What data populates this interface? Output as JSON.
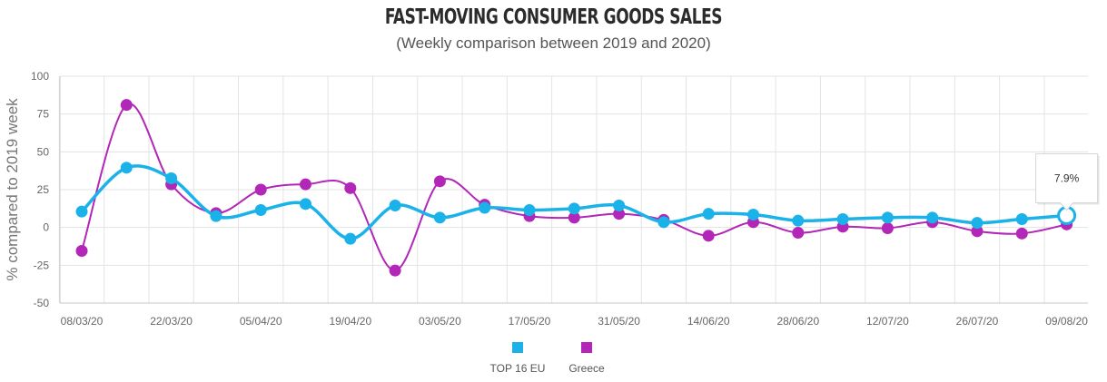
{
  "chart_data": {
    "type": "line",
    "title": "FAST-MOVING CONSUMER GOODS SALES",
    "subtitle": "(Weekly comparison between 2019 and 2020)",
    "ylabel": "% compared to 2019 week",
    "xlabel": "",
    "ylim": [
      -50,
      100
    ],
    "yticks": [
      100,
      75,
      50,
      25,
      0,
      -25,
      -50
    ],
    "grid": true,
    "legend_position": "bottom-center",
    "x": [
      "08/03/20",
      "15/03/20",
      "22/03/20",
      "29/03/20",
      "05/04/20",
      "12/04/20",
      "19/04/20",
      "26/04/20",
      "03/05/20",
      "10/05/20",
      "17/05/20",
      "24/05/20",
      "31/05/20",
      "07/06/20",
      "14/06/20",
      "21/06/20",
      "28/06/20",
      "05/07/20",
      "12/07/20",
      "19/07/20",
      "26/07/20",
      "02/08/20",
      "09/08/20"
    ],
    "xtick_labels": [
      "08/03/20",
      "22/03/20",
      "05/04/20",
      "19/04/20",
      "03/05/20",
      "17/05/20",
      "31/05/20",
      "14/06/20",
      "28/06/20",
      "12/07/20",
      "26/07/20",
      "09/08/20"
    ],
    "series": [
      {
        "name": "TOP 16 EU",
        "color": "#1ab2e8",
        "values": [
          10.5,
          39.5,
          32.5,
          7.5,
          11.5,
          15.5,
          -7.5,
          14.5,
          6.5,
          13.0,
          11.5,
          12.5,
          14.5,
          3.5,
          9.0,
          8.5,
          4.5,
          5.5,
          6.5,
          6.5,
          3.0,
          5.5,
          7.9
        ]
      },
      {
        "name": "Greece",
        "color": "#b226b8",
        "values": [
          -15.5,
          81.0,
          28.5,
          9.5,
          25.0,
          28.5,
          26.0,
          -28.5,
          30.5,
          15.0,
          7.5,
          6.5,
          9.0,
          5.0,
          -5.5,
          3.5,
          -3.5,
          0.5,
          -0.5,
          3.5,
          -2.5,
          -4.0,
          2.0
        ]
      }
    ],
    "tooltip": {
      "series": "TOP 16 EU",
      "x": "09/08/20",
      "label": "7.9%"
    }
  }
}
